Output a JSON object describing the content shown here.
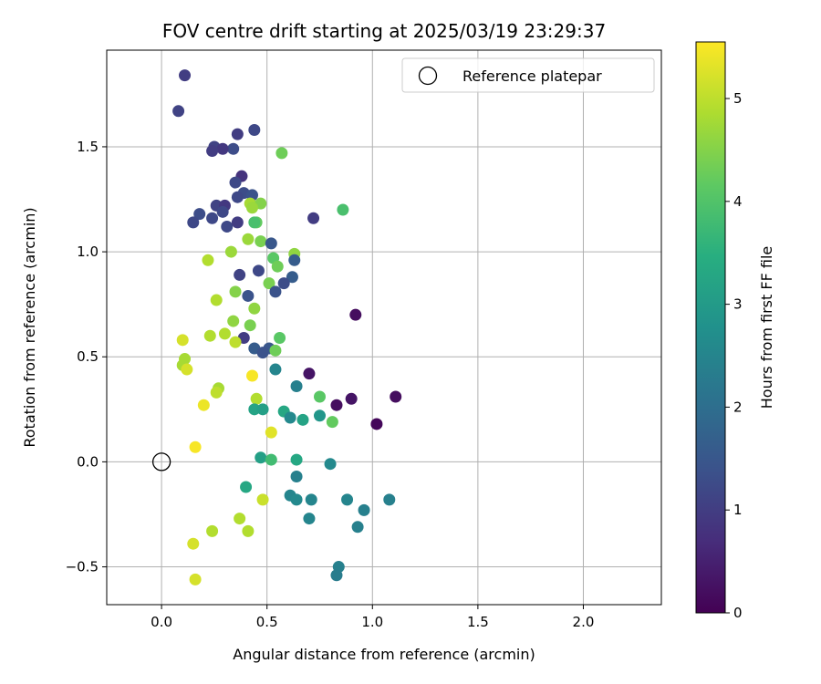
{
  "chart_data": {
    "type": "scatter",
    "title": "FOV centre drift starting at 2025/03/19 23:29:37",
    "xlabel": "Angular distance from reference (arcmin)",
    "ylabel": "Rotation from reference (arcmin)",
    "xlim": [
      -0.26,
      2.37
    ],
    "ylim": [
      -0.68,
      1.96
    ],
    "xticks": [
      0.0,
      0.5,
      1.0,
      1.5,
      2.0
    ],
    "xtick_labels": [
      "0.0",
      "0.5",
      "1.0",
      "1.5",
      "2.0"
    ],
    "yticks": [
      -0.5,
      0.0,
      0.5,
      1.0,
      1.5
    ],
    "ytick_labels": [
      "−0.5",
      "0.0",
      "0.5",
      "1.0",
      "1.5"
    ],
    "grid": true,
    "legend": {
      "placement": "top-right",
      "entries": [
        "Reference platepar"
      ]
    },
    "reference_point": {
      "x": 0.0,
      "y": 0.0,
      "label": "Reference platepar"
    },
    "colorbar": {
      "label": "Hours from first FF file",
      "colormap": "viridis",
      "range": [
        0,
        5.55
      ],
      "ticks": [
        0,
        1,
        2,
        3,
        4,
        5
      ],
      "tick_labels": [
        "0",
        "1",
        "2",
        "3",
        "4",
        "5"
      ]
    },
    "points": [
      {
        "x": 0.11,
        "y": 1.84,
        "c": 1.0
      },
      {
        "x": 0.08,
        "y": 1.67,
        "c": 1.1
      },
      {
        "x": 0.44,
        "y": 1.58,
        "c": 1.2
      },
      {
        "x": 0.36,
        "y": 1.56,
        "c": 1.0
      },
      {
        "x": 0.34,
        "y": 1.49,
        "c": 1.3
      },
      {
        "x": 0.25,
        "y": 1.5,
        "c": 1.1
      },
      {
        "x": 0.29,
        "y": 1.49,
        "c": 0.9
      },
      {
        "x": 0.24,
        "y": 1.48,
        "c": 1.0
      },
      {
        "x": 0.57,
        "y": 1.47,
        "c": 4.3
      },
      {
        "x": 0.38,
        "y": 1.36,
        "c": 0.8
      },
      {
        "x": 0.35,
        "y": 1.33,
        "c": 1.2
      },
      {
        "x": 0.39,
        "y": 1.28,
        "c": 1.3
      },
      {
        "x": 0.43,
        "y": 1.27,
        "c": 1.4
      },
      {
        "x": 0.36,
        "y": 1.26,
        "c": 1.2
      },
      {
        "x": 0.26,
        "y": 1.22,
        "c": 1.1
      },
      {
        "x": 0.3,
        "y": 1.22,
        "c": 0.9
      },
      {
        "x": 0.29,
        "y": 1.19,
        "c": 1.2
      },
      {
        "x": 0.18,
        "y": 1.18,
        "c": 1.3
      },
      {
        "x": 0.24,
        "y": 1.16,
        "c": 1.2
      },
      {
        "x": 0.15,
        "y": 1.14,
        "c": 1.2
      },
      {
        "x": 0.31,
        "y": 1.12,
        "c": 1.2
      },
      {
        "x": 0.36,
        "y": 1.14,
        "c": 1.0
      },
      {
        "x": 0.72,
        "y": 1.16,
        "c": 1.0
      },
      {
        "x": 0.86,
        "y": 1.2,
        "c": 3.9
      },
      {
        "x": 0.42,
        "y": 1.23,
        "c": 4.8
      },
      {
        "x": 0.47,
        "y": 1.23,
        "c": 4.5
      },
      {
        "x": 0.43,
        "y": 1.21,
        "c": 4.7
      },
      {
        "x": 0.45,
        "y": 1.14,
        "c": 4.2
      },
      {
        "x": 0.44,
        "y": 1.14,
        "c": 3.9
      },
      {
        "x": 0.41,
        "y": 1.06,
        "c": 4.7
      },
      {
        "x": 0.47,
        "y": 1.05,
        "c": 4.4
      },
      {
        "x": 0.52,
        "y": 1.04,
        "c": 1.5
      },
      {
        "x": 0.33,
        "y": 1.0,
        "c": 4.7
      },
      {
        "x": 0.63,
        "y": 0.99,
        "c": 4.6
      },
      {
        "x": 0.53,
        "y": 0.97,
        "c": 4.1
      },
      {
        "x": 0.22,
        "y": 0.96,
        "c": 4.9
      },
      {
        "x": 0.63,
        "y": 0.96,
        "c": 1.6
      },
      {
        "x": 0.55,
        "y": 0.93,
        "c": 4.3
      },
      {
        "x": 0.46,
        "y": 0.91,
        "c": 1.2
      },
      {
        "x": 0.37,
        "y": 0.89,
        "c": 1.1
      },
      {
        "x": 0.62,
        "y": 0.88,
        "c": 1.6
      },
      {
        "x": 0.58,
        "y": 0.85,
        "c": 1.3
      },
      {
        "x": 0.51,
        "y": 0.85,
        "c": 4.4
      },
      {
        "x": 0.35,
        "y": 0.81,
        "c": 4.5
      },
      {
        "x": 0.54,
        "y": 0.81,
        "c": 1.4
      },
      {
        "x": 0.41,
        "y": 0.79,
        "c": 1.4
      },
      {
        "x": 0.26,
        "y": 0.77,
        "c": 4.9
      },
      {
        "x": 0.44,
        "y": 0.73,
        "c": 4.6
      },
      {
        "x": 0.92,
        "y": 0.7,
        "c": 0.2
      },
      {
        "x": 0.34,
        "y": 0.67,
        "c": 4.6
      },
      {
        "x": 0.42,
        "y": 0.65,
        "c": 4.4
      },
      {
        "x": 0.3,
        "y": 0.61,
        "c": 4.9
      },
      {
        "x": 0.23,
        "y": 0.6,
        "c": 4.9
      },
      {
        "x": 0.56,
        "y": 0.59,
        "c": 4.1
      },
      {
        "x": 0.39,
        "y": 0.59,
        "c": 1.0
      },
      {
        "x": 0.1,
        "y": 0.58,
        "c": 5.2
      },
      {
        "x": 0.35,
        "y": 0.57,
        "c": 5.0
      },
      {
        "x": 0.44,
        "y": 0.54,
        "c": 1.6
      },
      {
        "x": 0.51,
        "y": 0.54,
        "c": 1.5
      },
      {
        "x": 0.54,
        "y": 0.53,
        "c": 4.3
      },
      {
        "x": 0.48,
        "y": 0.52,
        "c": 1.4
      },
      {
        "x": 0.11,
        "y": 0.49,
        "c": 4.8
      },
      {
        "x": 0.1,
        "y": 0.46,
        "c": 4.8
      },
      {
        "x": 0.12,
        "y": 0.44,
        "c": 5.2
      },
      {
        "x": 0.54,
        "y": 0.44,
        "c": 2.5
      },
      {
        "x": 0.7,
        "y": 0.42,
        "c": 0.3
      },
      {
        "x": 0.43,
        "y": 0.41,
        "c": 5.5
      },
      {
        "x": 0.64,
        "y": 0.36,
        "c": 2.4
      },
      {
        "x": 0.27,
        "y": 0.35,
        "c": 4.8
      },
      {
        "x": 0.26,
        "y": 0.33,
        "c": 5.0
      },
      {
        "x": 0.75,
        "y": 0.31,
        "c": 4.1
      },
      {
        "x": 1.11,
        "y": 0.31,
        "c": 0.2
      },
      {
        "x": 0.45,
        "y": 0.3,
        "c": 4.9
      },
      {
        "x": 0.9,
        "y": 0.3,
        "c": 0.3
      },
      {
        "x": 0.83,
        "y": 0.27,
        "c": 0.2
      },
      {
        "x": 0.2,
        "y": 0.27,
        "c": 5.4
      },
      {
        "x": 0.44,
        "y": 0.25,
        "c": 3.2
      },
      {
        "x": 0.48,
        "y": 0.25,
        "c": 3.1
      },
      {
        "x": 0.58,
        "y": 0.24,
        "c": 3.3
      },
      {
        "x": 0.61,
        "y": 0.21,
        "c": 2.6
      },
      {
        "x": 0.75,
        "y": 0.22,
        "c": 2.9
      },
      {
        "x": 0.67,
        "y": 0.2,
        "c": 3.2
      },
      {
        "x": 0.81,
        "y": 0.19,
        "c": 4.2
      },
      {
        "x": 1.02,
        "y": 0.18,
        "c": 0.1
      },
      {
        "x": 0.52,
        "y": 0.14,
        "c": 5.3
      },
      {
        "x": 0.16,
        "y": 0.07,
        "c": 5.5
      },
      {
        "x": 0.47,
        "y": 0.02,
        "c": 3.1
      },
      {
        "x": 0.52,
        "y": 0.01,
        "c": 3.8
      },
      {
        "x": 0.64,
        "y": 0.01,
        "c": 3.3
      },
      {
        "x": 0.8,
        "y": -0.01,
        "c": 2.6
      },
      {
        "x": 0.64,
        "y": -0.07,
        "c": 2.4
      },
      {
        "x": 0.4,
        "y": -0.12,
        "c": 3.3
      },
      {
        "x": 0.61,
        "y": -0.16,
        "c": 2.5
      },
      {
        "x": 0.64,
        "y": -0.18,
        "c": 2.6
      },
      {
        "x": 0.71,
        "y": -0.18,
        "c": 2.5
      },
      {
        "x": 0.88,
        "y": -0.18,
        "c": 2.5
      },
      {
        "x": 1.08,
        "y": -0.18,
        "c": 2.4
      },
      {
        "x": 0.48,
        "y": -0.18,
        "c": 5.1
      },
      {
        "x": 0.96,
        "y": -0.23,
        "c": 2.4
      },
      {
        "x": 0.37,
        "y": -0.27,
        "c": 4.9
      },
      {
        "x": 0.7,
        "y": -0.27,
        "c": 2.5
      },
      {
        "x": 0.93,
        "y": -0.31,
        "c": 2.4
      },
      {
        "x": 0.24,
        "y": -0.33,
        "c": 4.9
      },
      {
        "x": 0.41,
        "y": -0.33,
        "c": 4.9
      },
      {
        "x": 0.15,
        "y": -0.39,
        "c": 5.2
      },
      {
        "x": 0.84,
        "y": -0.5,
        "c": 2.4
      },
      {
        "x": 0.83,
        "y": -0.54,
        "c": 2.3
      },
      {
        "x": 0.16,
        "y": -0.56,
        "c": 5.2
      }
    ]
  }
}
